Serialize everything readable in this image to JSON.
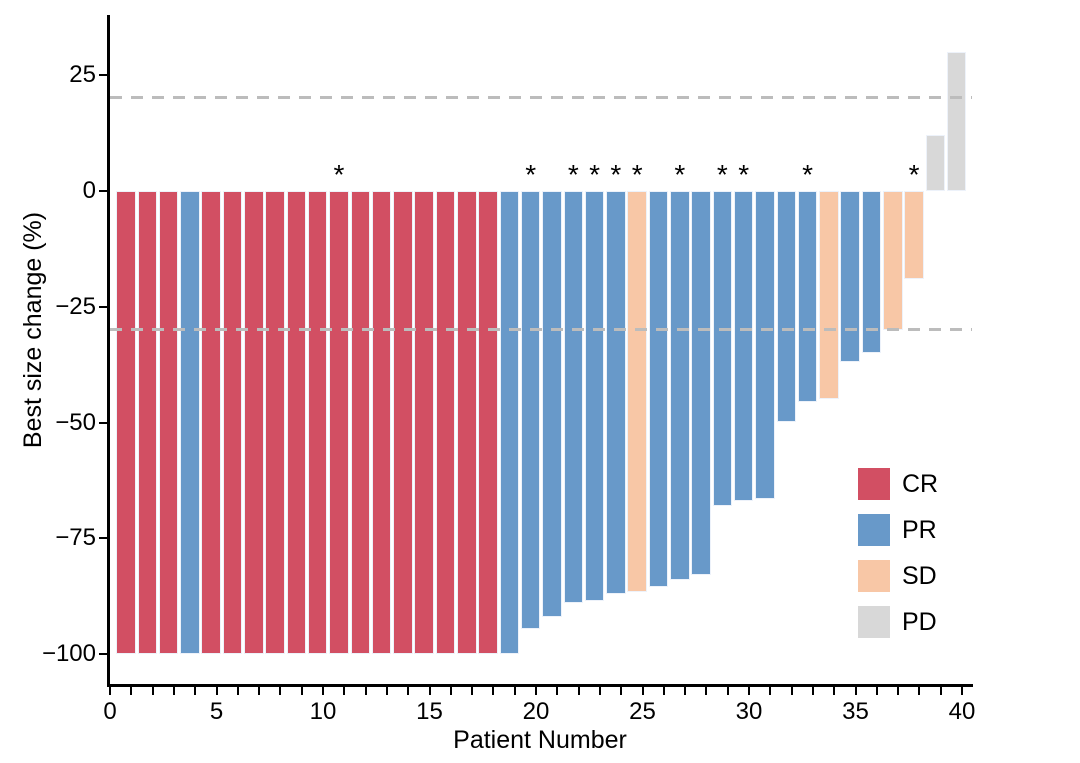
{
  "chart_data": {
    "type": "bar",
    "chart_kind": "waterfall",
    "title": "",
    "xlabel": "Patient Number",
    "ylabel": "Best size change (%)",
    "ylim": [
      -107,
      37
    ],
    "grid": "off",
    "x_axis": {
      "max": 40,
      "minor_tick_every": 1,
      "major_ticks": [
        0,
        5,
        10,
        15,
        20,
        25,
        30,
        35,
        40
      ]
    },
    "y_ticks": [
      {
        "value": 25,
        "label": "25"
      },
      {
        "value": 0,
        "label": "0"
      },
      {
        "value": -25,
        "label": "−25"
      },
      {
        "value": -50,
        "label": "−50"
      },
      {
        "value": -75,
        "label": "−75"
      },
      {
        "value": -100,
        "label": "−100"
      }
    ],
    "reference_lines": [
      {
        "value": 20,
        "style": "dashed",
        "color": "#BCBCBC"
      },
      {
        "value": -30,
        "style": "dashed",
        "color": "#BCBCBC"
      }
    ],
    "annotation_symbol": "*",
    "legend": {
      "position": "bottom-right",
      "entries": [
        {
          "label": "CR",
          "color": "#D24F63"
        },
        {
          "label": "PR",
          "color": "#6899C9"
        },
        {
          "label": "SD",
          "color": "#F8C7A6"
        },
        {
          "label": "PD",
          "color": "#D8D8D8"
        }
      ]
    },
    "patients": [
      {
        "patient": 1,
        "change": -100,
        "response": "CR",
        "starred": false
      },
      {
        "patient": 2,
        "change": -100,
        "response": "CR",
        "starred": false
      },
      {
        "patient": 3,
        "change": -100,
        "response": "CR",
        "starred": false
      },
      {
        "patient": 4,
        "change": -100,
        "response": "PR",
        "starred": false
      },
      {
        "patient": 5,
        "change": -100,
        "response": "CR",
        "starred": false
      },
      {
        "patient": 6,
        "change": -100,
        "response": "CR",
        "starred": false
      },
      {
        "patient": 7,
        "change": -100,
        "response": "CR",
        "starred": false
      },
      {
        "patient": 8,
        "change": -100,
        "response": "CR",
        "starred": false
      },
      {
        "patient": 9,
        "change": -100,
        "response": "CR",
        "starred": false
      },
      {
        "patient": 10,
        "change": -100,
        "response": "CR",
        "starred": false
      },
      {
        "patient": 11,
        "change": -100,
        "response": "CR",
        "starred": true
      },
      {
        "patient": 12,
        "change": -100,
        "response": "CR",
        "starred": false
      },
      {
        "patient": 13,
        "change": -100,
        "response": "CR",
        "starred": false
      },
      {
        "patient": 14,
        "change": -100,
        "response": "CR",
        "starred": false
      },
      {
        "patient": 15,
        "change": -100,
        "response": "CR",
        "starred": false
      },
      {
        "patient": 16,
        "change": -100,
        "response": "CR",
        "starred": false
      },
      {
        "patient": 17,
        "change": -100,
        "response": "CR",
        "starred": false
      },
      {
        "patient": 18,
        "change": -100,
        "response": "CR",
        "starred": false
      },
      {
        "patient": 19,
        "change": -100,
        "response": "PR",
        "starred": false
      },
      {
        "patient": 20,
        "change": -94.5,
        "response": "PR",
        "starred": true
      },
      {
        "patient": 21,
        "change": -92,
        "response": "PR",
        "starred": false
      },
      {
        "patient": 22,
        "change": -89,
        "response": "PR",
        "starred": true
      },
      {
        "patient": 23,
        "change": -88.5,
        "response": "PR",
        "starred": true
      },
      {
        "patient": 24,
        "change": -87,
        "response": "PR",
        "starred": true
      },
      {
        "patient": 25,
        "change": -86.5,
        "response": "SD",
        "starred": true
      },
      {
        "patient": 26,
        "change": -85.5,
        "response": "PR",
        "starred": false
      },
      {
        "patient": 27,
        "change": -84,
        "response": "PR",
        "starred": true
      },
      {
        "patient": 28,
        "change": -83,
        "response": "PR",
        "starred": false
      },
      {
        "patient": 29,
        "change": -68,
        "response": "PR",
        "starred": true
      },
      {
        "patient": 30,
        "change": -67,
        "response": "PR",
        "starred": true
      },
      {
        "patient": 31,
        "change": -66.5,
        "response": "PR",
        "starred": false
      },
      {
        "patient": 32,
        "change": -50,
        "response": "PR",
        "starred": false
      },
      {
        "patient": 33,
        "change": -45.5,
        "response": "PR",
        "starred": true
      },
      {
        "patient": 34,
        "change": -45,
        "response": "SD",
        "starred": false
      },
      {
        "patient": 35,
        "change": -37,
        "response": "PR",
        "starred": false
      },
      {
        "patient": 36,
        "change": -35,
        "response": "PR",
        "starred": false
      },
      {
        "patient": 37,
        "change": -30,
        "response": "SD",
        "starred": false
      },
      {
        "patient": 38,
        "change": -19,
        "response": "SD",
        "starred": true
      },
      {
        "patient": 39,
        "change": 12,
        "response": "PD",
        "starred": false
      },
      {
        "patient": 40,
        "change": 30,
        "response": "PD",
        "starred": false
      }
    ]
  }
}
